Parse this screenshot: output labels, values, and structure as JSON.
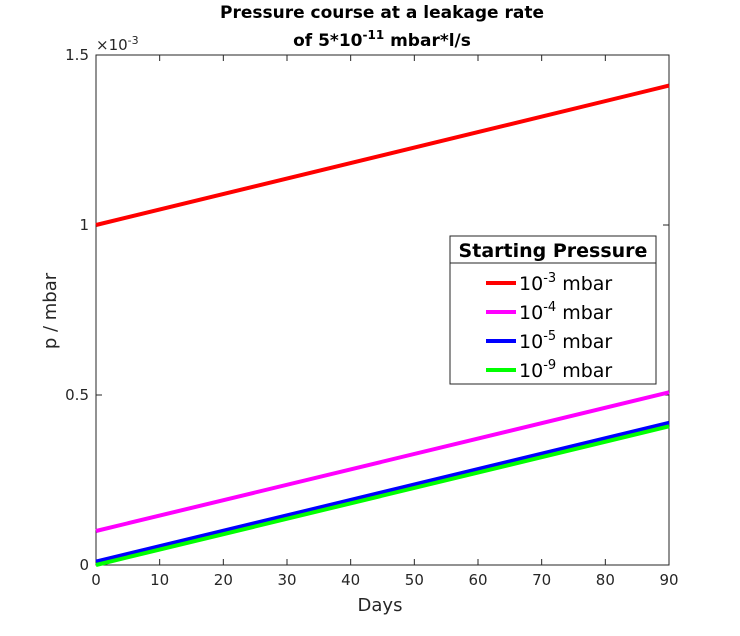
{
  "chart_data": {
    "type": "line",
    "title_line1": "Pressure course at a leakage rate",
    "title_line2_prefix": "of 5*10",
    "title_line2_exp": "-11",
    "title_line2_suffix": " mbar*l/s",
    "xlabel": "Days",
    "ylabel": "p / mbar",
    "y_multiplier_base": "×10",
    "y_multiplier_exp": "-3",
    "xlim": [
      0,
      90
    ],
    "ylim": [
      0,
      0.0015
    ],
    "x_ticks": [
      0,
      10,
      20,
      30,
      40,
      50,
      60,
      70,
      80,
      90
    ],
    "y_ticks": [
      {
        "value": 0,
        "label": "0"
      },
      {
        "value": 0.0005,
        "label": "0.5"
      },
      {
        "value": 0.001,
        "label": "1"
      },
      {
        "value": 0.0015,
        "label": "1.5"
      }
    ],
    "grid": false,
    "legend_title": "Starting Pressure",
    "legend_position": "right",
    "series": [
      {
        "name_base": "10",
        "name_exp": "-3",
        "name_unit": " mbar",
        "color": "#ff0000",
        "x": [
          0,
          90
        ],
        "y": [
          0.001,
          0.00141
        ]
      },
      {
        "name_base": "10",
        "name_exp": "-4",
        "name_unit": " mbar",
        "color": "#ff00ff",
        "x": [
          0,
          90
        ],
        "y": [
          0.0001,
          0.000508
        ]
      },
      {
        "name_base": "10",
        "name_exp": "-5",
        "name_unit": " mbar",
        "color": "#0000ff",
        "x": [
          0,
          90
        ],
        "y": [
          1e-05,
          0.000418
        ]
      },
      {
        "name_base": "10",
        "name_exp": "-9",
        "name_unit": " mbar",
        "color": "#00ff00",
        "x": [
          0,
          90
        ],
        "y": [
          1e-09,
          0.000408
        ]
      }
    ]
  }
}
